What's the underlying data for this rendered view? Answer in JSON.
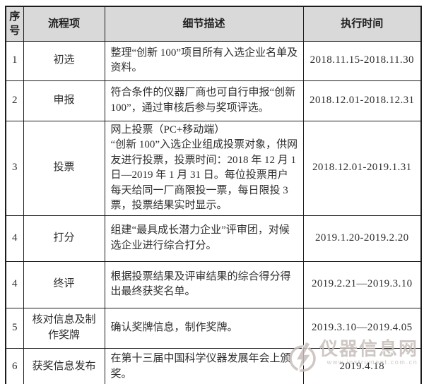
{
  "table": {
    "headers": [
      "序号",
      "流程项",
      "细节描述",
      "执行时间"
    ],
    "rows": [
      {
        "no": "1",
        "item": "初选",
        "desc": "整理“创新 100”项目所有入选企业名单及资料。",
        "time": "2018.11.15-2018.11.30"
      },
      {
        "no": "2",
        "item": "申报",
        "desc": "符合条件的仪器厂商也可自行申报“创新 100”，通过审核后参与奖项评选。",
        "time": "2018.12.01-2018.12.31"
      },
      {
        "no": "3",
        "item": "投票",
        "desc": "网上投票（PC+移动端）\n“创新 100”入选企业组成投票对象，供网友进行投票，投票时间：2018 年 12 月 1 日—2019 年 1 月 31 日。每位投票用户每天给同一厂商限投一票，每日限投 3 票，投票结果实时显示。",
        "time": "2018.12.01-2019.1.31"
      },
      {
        "no": "4",
        "item": "打分",
        "desc": "组建“最具成长潜力企业”评审团，对候选企业进行综合打分。",
        "time": "2019.1.20-2019.2.20"
      },
      {
        "no": "4",
        "item": "终评",
        "desc": "根据投票结果及评审结果的综合得分得出最终获奖名单。",
        "time": "2019.2.21—2019.3.10"
      },
      {
        "no": "5",
        "item": "核对信息及制作奖牌",
        "desc": "确认奖牌信息，制作奖牌。",
        "time": "2019.3.10—2019.4.05"
      },
      {
        "no": "6",
        "item": "获奖信息发布",
        "desc": "在第十三届中国科学仪器发展年会上颁奖。",
        "time": "2019.4.18"
      }
    ]
  },
  "watermark": {
    "site": "仪器信息网",
    "url": "www.instrument.com.cn"
  },
  "colors": {
    "header_bg": "#d9d9d9",
    "border": "#1c1c1c",
    "text": "#2e2e2e",
    "watermark": "#c6beba"
  }
}
